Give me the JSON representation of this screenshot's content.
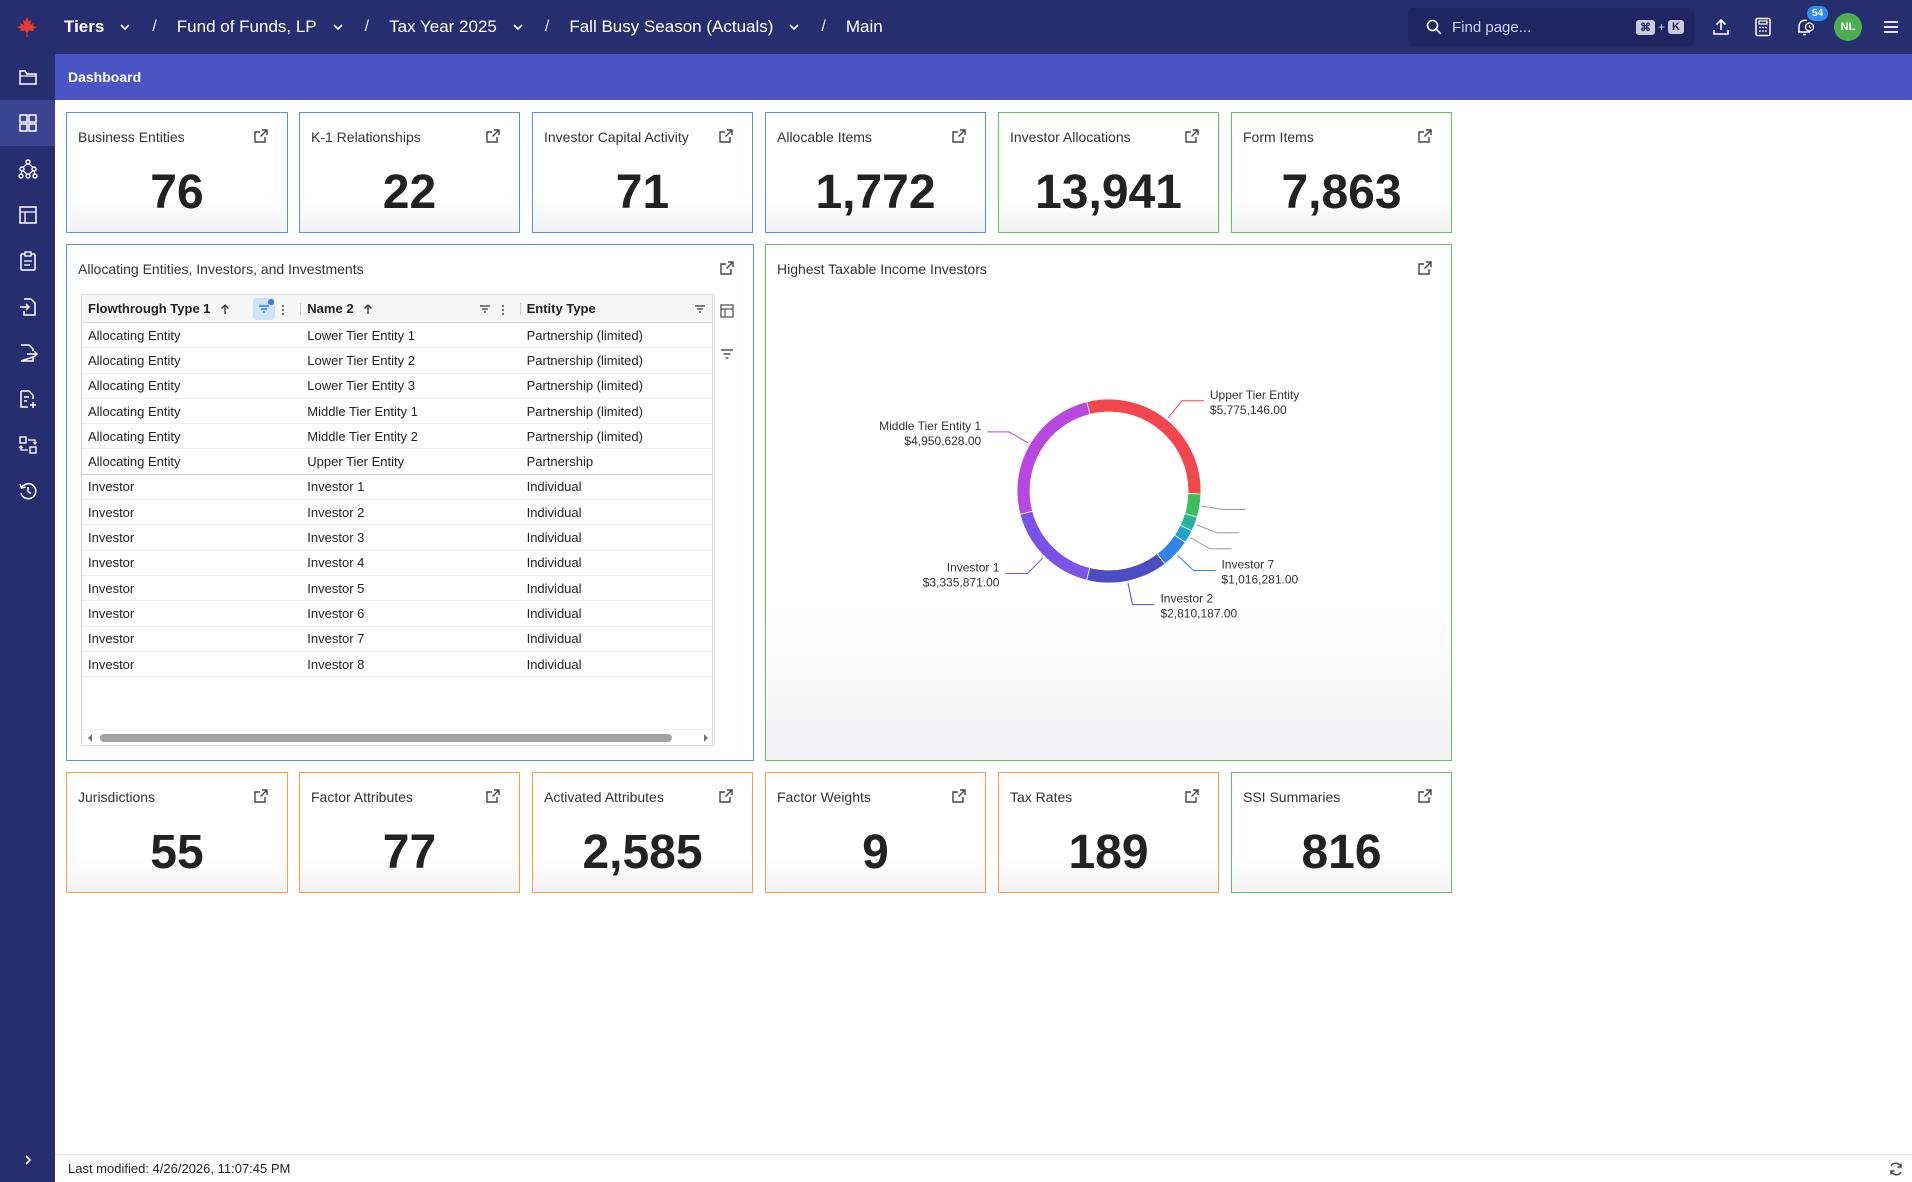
{
  "breadcrumbs": [
    {
      "label": "Tiers",
      "has_menu": true
    },
    {
      "label": "Fund of Funds, LP",
      "has_menu": true
    },
    {
      "label": "Tax Year 2025",
      "has_menu": true
    },
    {
      "label": "Fall Busy Season (Actuals)",
      "has_menu": true
    },
    {
      "label": "Main",
      "has_menu": false
    }
  ],
  "search": {
    "placeholder": "Find page...",
    "shortcut_mod": "⌘",
    "shortcut_plus": "+",
    "shortcut_key": "K"
  },
  "header": {
    "notifications_count": "54",
    "user_initials": "NL"
  },
  "subheader": {
    "title": "Dashboard"
  },
  "top_cards": [
    {
      "title": "Business Entities",
      "value": "76"
    },
    {
      "title": "K-1 Relationships",
      "value": "22"
    },
    {
      "title": "Investor Capital Activity",
      "value": "71"
    },
    {
      "title": "Allocable Items",
      "value": "1,772"
    },
    {
      "title": "Investor Allocations",
      "value": "13,941"
    },
    {
      "title": "Form Items",
      "value": "7,863"
    }
  ],
  "table_panel": {
    "title": "Allocating Entities, Investors, and Investments",
    "columns": [
      "Flowthrough Type 1",
      "Name 2",
      "Entity Type"
    ],
    "rows": [
      [
        "Allocating Entity",
        "Lower Tier Entity 1",
        "Partnership (limited)"
      ],
      [
        "Allocating Entity",
        "Lower Tier Entity 2",
        "Partnership (limited)"
      ],
      [
        "Allocating Entity",
        "Lower Tier Entity 3",
        "Partnership (limited)"
      ],
      [
        "Allocating Entity",
        "Middle Tier Entity 1",
        "Partnership (limited)"
      ],
      [
        "Allocating Entity",
        "Middle Tier Entity 2",
        "Partnership (limited)"
      ],
      [
        "Allocating Entity",
        "Upper Tier Entity",
        "Partnership"
      ],
      [
        "Investor",
        "Investor 1",
        "Individual"
      ],
      [
        "Investor",
        "Investor 2",
        "Individual"
      ],
      [
        "Investor",
        "Investor 3",
        "Individual"
      ],
      [
        "Investor",
        "Investor 4",
        "Individual"
      ],
      [
        "Investor",
        "Investor 5",
        "Individual"
      ],
      [
        "Investor",
        "Investor 6",
        "Individual"
      ],
      [
        "Investor",
        "Investor 7",
        "Individual"
      ],
      [
        "Investor",
        "Investor 8",
        "Individual"
      ]
    ]
  },
  "chart_panel": {
    "title": "Highest Taxable Income Investors"
  },
  "chart_data": {
    "type": "pie",
    "donut": true,
    "slices": [
      {
        "label": "Upper Tier Entity",
        "value_label": "$5,775,146.00",
        "value": 5775146,
        "color": "#f2474f"
      },
      {
        "label": "",
        "value_label": "",
        "value": 800000,
        "color": "#3cbf5a"
      },
      {
        "label": "",
        "value_label": "",
        "value": 500000,
        "color": "#25b39a"
      },
      {
        "label": "",
        "value_label": "",
        "value": 450000,
        "color": "#1ea3c9"
      },
      {
        "label": "Investor 7",
        "value_label": "$1,016,281.00",
        "value": 1016281,
        "color": "#2f86e8"
      },
      {
        "label": "Investor 2",
        "value_label": "$2,810,187.00",
        "value": 2810187,
        "color": "#4a4ec2"
      },
      {
        "label": "Investor 1",
        "value_label": "$3,335,871.00",
        "value": 3335871,
        "color": "#7a52e6"
      },
      {
        "label": "Middle Tier Entity 1",
        "value_label": "$4,950,628.00",
        "value": 4950628,
        "color": "#b648df"
      }
    ]
  },
  "bottom_cards": [
    {
      "title": "Jurisdictions",
      "value": "55"
    },
    {
      "title": "Factor Attributes",
      "value": "77"
    },
    {
      "title": "Activated Attributes",
      "value": "2,585"
    },
    {
      "title": "Factor Weights",
      "value": "9"
    },
    {
      "title": "Tax Rates",
      "value": "189"
    },
    {
      "title": "SSI Summaries",
      "value": "816"
    }
  ],
  "footer": {
    "last_modified": "Last modified: 4/26/2026, 11:07:45 PM"
  },
  "colors": {
    "nav_bg": "#262e6f",
    "subheader_bg": "#4a55c3",
    "card_blue": "#5b8fe0",
    "card_green": "#5fc267",
    "card_orange": "#f0a34a"
  }
}
